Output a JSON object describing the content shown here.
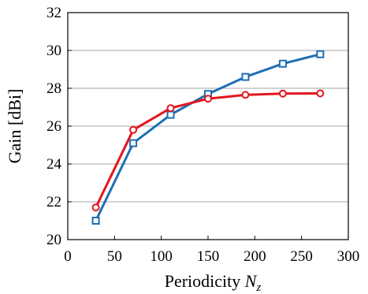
{
  "chart_data": {
    "type": "line",
    "xlabel": "Periodicity ",
    "xlabel_var": "N",
    "xlabel_sub": "z",
    "ylabel": "Gain [dBi]",
    "xlim": [
      0,
      300
    ],
    "ylim": [
      20,
      32
    ],
    "xticks": [
      0,
      50,
      100,
      150,
      200,
      250,
      300
    ],
    "yticks": [
      20,
      22,
      24,
      26,
      28,
      30,
      32
    ],
    "grid": "horizontal",
    "legend": "none",
    "series": [
      {
        "marker": "square",
        "color": "#1f6fb4",
        "x": [
          30,
          70,
          110,
          150,
          190,
          230,
          270
        ],
        "y": [
          21.0,
          25.1,
          26.6,
          27.7,
          28.6,
          29.3,
          29.8
        ]
      },
      {
        "marker": "circle",
        "color": "#e3171d",
        "x": [
          30,
          70,
          110,
          150,
          190,
          230,
          270
        ],
        "y": [
          21.7,
          25.8,
          26.95,
          27.45,
          27.65,
          27.72,
          27.73
        ]
      }
    ]
  }
}
